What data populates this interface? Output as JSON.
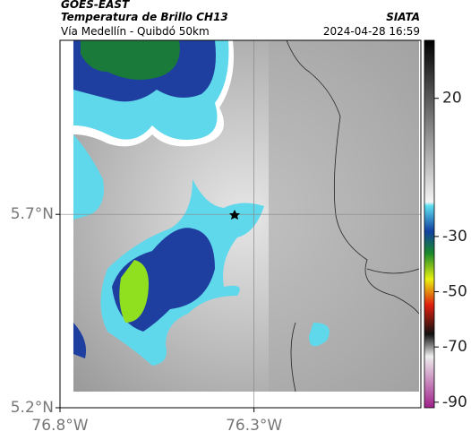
{
  "header": {
    "source": "GOES-EAST",
    "title": "Temperatura de Brillo CH13",
    "agency": "SIATA",
    "subtitle": "Vía Medellín - Quibdó 50km",
    "timestamp": "2024-04-28 16:59"
  },
  "map": {
    "xlim": [
      -76.8,
      -75.87
    ],
    "ylim": [
      5.2,
      6.15
    ],
    "xticks": [
      {
        "value": -76.8,
        "label": "76.8°W"
      },
      {
        "value": -76.3,
        "label": "76.3°W"
      }
    ],
    "yticks": [
      {
        "value": 5.7,
        "label": "5.7°N"
      },
      {
        "value": 5.2,
        "label": "5.2°N"
      }
    ],
    "grid": true
  },
  "colorbar": {
    "lim": [
      41,
      -92
    ],
    "ticks": [
      20,
      -30,
      -50,
      -70,
      -90
    ]
  }
}
